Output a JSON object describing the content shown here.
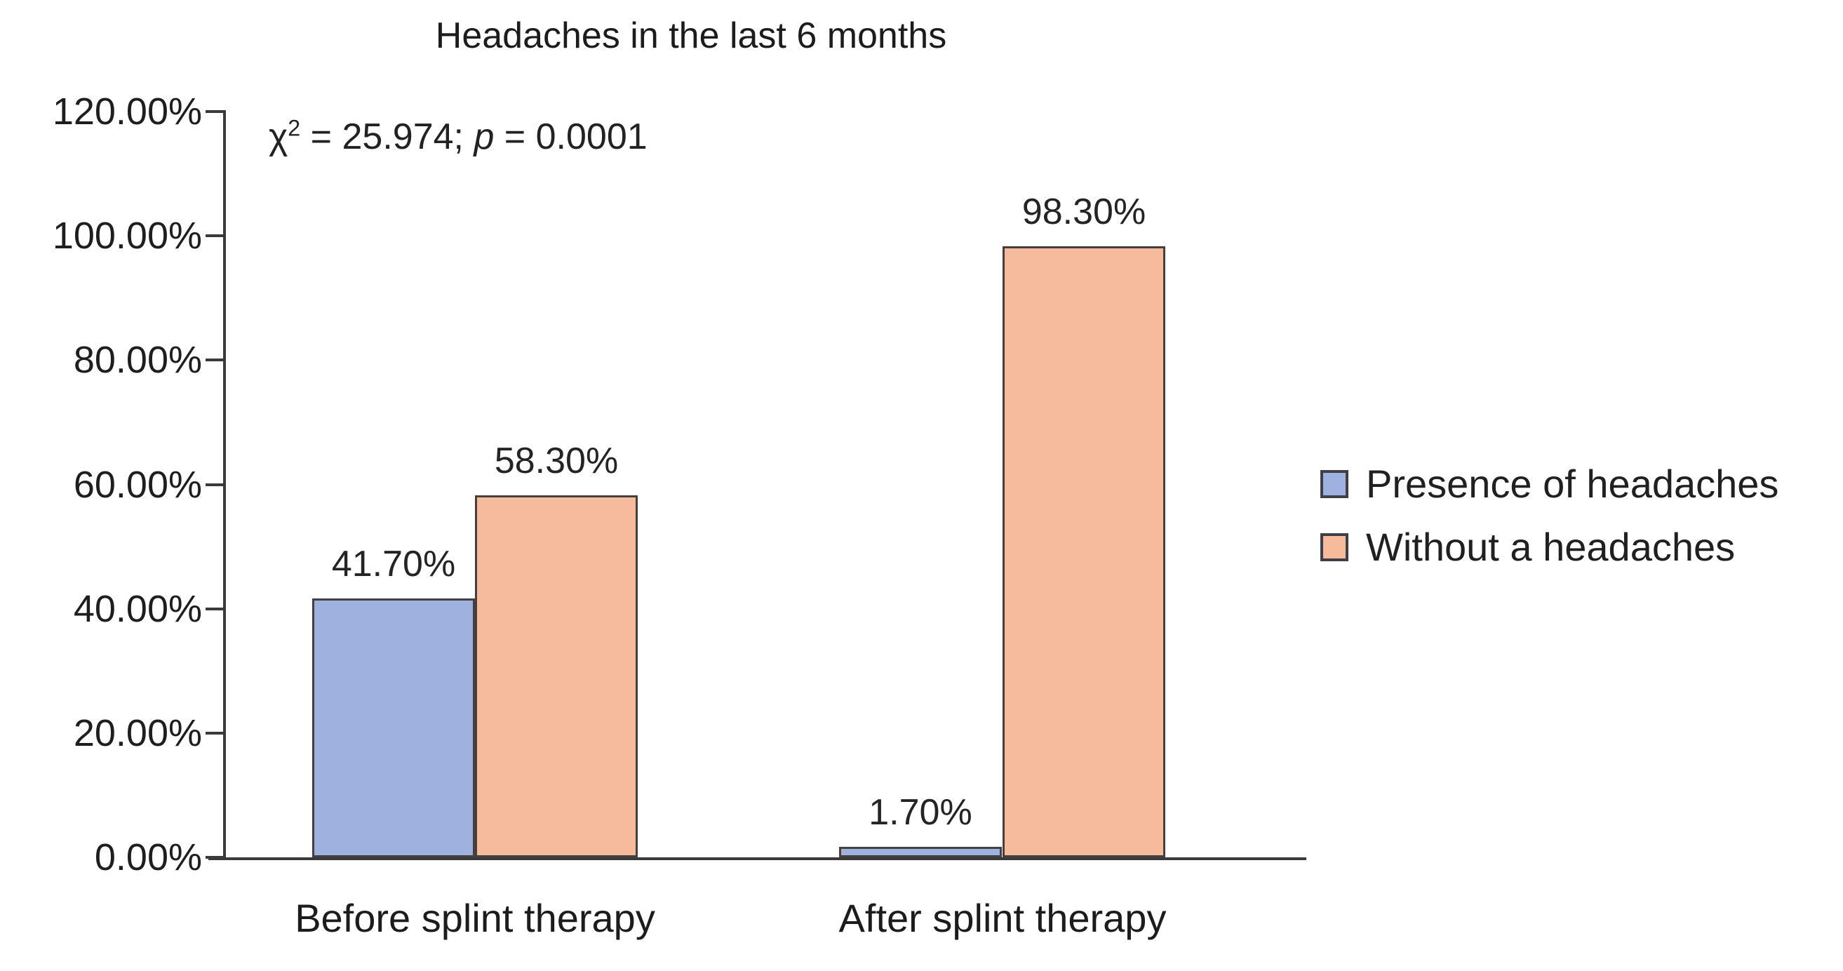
{
  "title": "Headaches in the last 6 months",
  "annotation": {
    "chi": "χ",
    "sup": "2",
    "eq1": " = 25.974; ",
    "p": "p",
    "eq2": " = 0.0001"
  },
  "chart_data": {
    "type": "bar",
    "title": "Headaches in the last 6 months",
    "annotation": "χ² = 25.974; p = 0.0001",
    "categories": [
      "Before splint therapy",
      "After splint therapy"
    ],
    "series": [
      {
        "name": "Presence of headaches",
        "values": [
          41.7,
          1.7
        ],
        "labels": [
          "41.70%",
          "1.70%"
        ],
        "color": "#9fb1de"
      },
      {
        "name": "Without a headaches",
        "values": [
          58.3,
          98.3
        ],
        "labels": [
          "58.30%",
          "98.30%"
        ],
        "color": "#f6bb9d"
      }
    ],
    "y_axis": {
      "ticks": [
        "120.00%",
        "100.00%",
        "80.00%",
        "60.00%",
        "40.00%",
        "20.00%",
        "0.00%"
      ],
      "min": 0,
      "max": 120,
      "step": 20,
      "unit": "%"
    },
    "xlabel": "",
    "ylabel": "",
    "ylim": [
      0,
      120
    ],
    "grid": false,
    "legend_position": "right",
    "bar_border_color": "#473f3e",
    "axis_color": "#3a3a3a",
    "text_color": "#1e1e1e",
    "background_color": "#ffffff"
  }
}
